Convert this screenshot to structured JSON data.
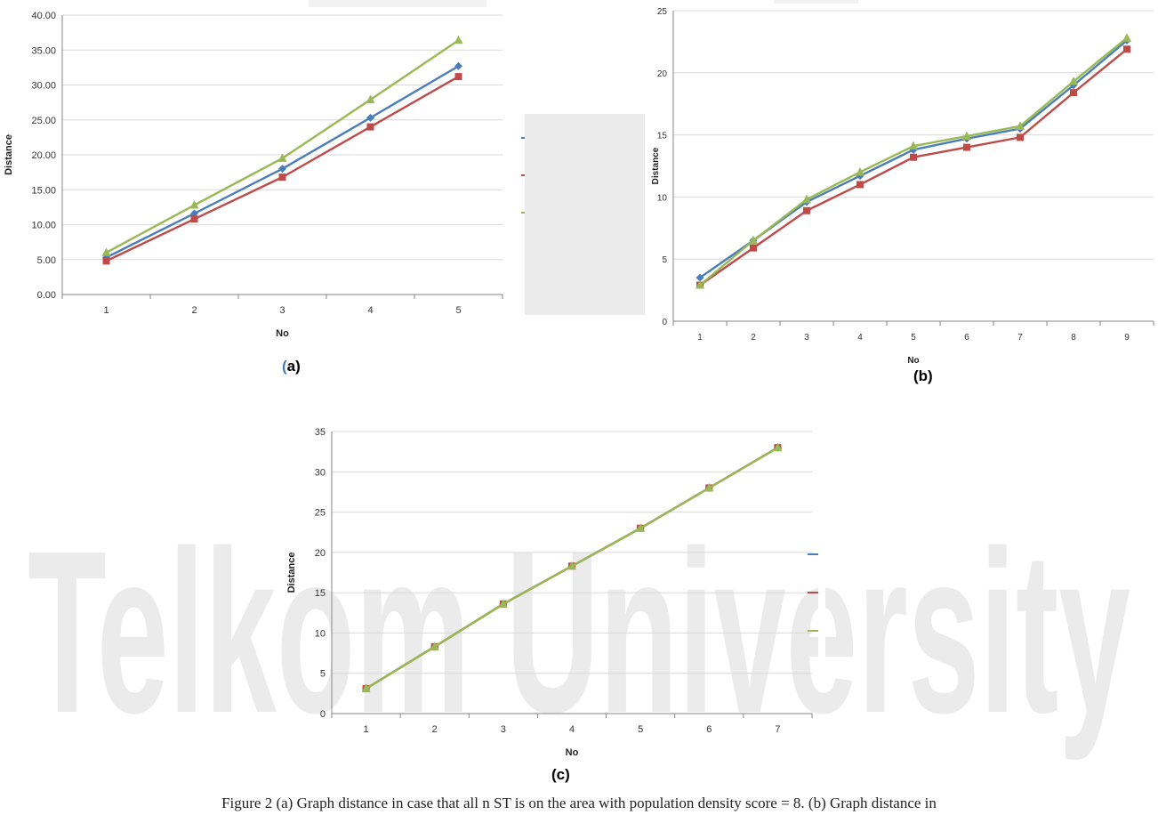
{
  "caption": "Figure 2 (a) Graph distance in case that all n ST is on the area with population density score = 8. (b) Graph distance in",
  "watermark": {
    "text": "Telkom University",
    "color": "#ebebeb"
  },
  "colors": {
    "series1": "#4a7ebb",
    "series2": "#be4b48",
    "series3": "#98b954",
    "grid": "#d9d9d9",
    "axis": "#868686"
  },
  "panels": [
    {
      "label_paren_open": "(",
      "label_rest": "a)",
      "chart_data": {
        "type": "line",
        "xlabel": "No",
        "ylabel": "Distance",
        "categories": [
          "1",
          "2",
          "3",
          "4",
          "5"
        ],
        "ylim": [
          0,
          40
        ],
        "ytick_step": 5,
        "ytick_decimals": 2,
        "series": [
          {
            "values": [
              5.3,
              11.6,
              18.0,
              25.3,
              32.7
            ],
            "marker": "diamond",
            "color": "#4a7ebb"
          },
          {
            "values": [
              4.8,
              10.8,
              16.8,
              24.0,
              31.2
            ],
            "marker": "square",
            "color": "#be4b48"
          },
          {
            "values": [
              6.0,
              12.8,
              19.5,
              27.9,
              36.4
            ],
            "marker": "triangle",
            "color": "#98b954"
          }
        ],
        "grid": true,
        "legend": "right (occluded)"
      }
    },
    {
      "label": "(b)",
      "chart_data": {
        "type": "line",
        "xlabel": "No",
        "ylabel": "Distance",
        "categories": [
          "1",
          "2",
          "3",
          "4",
          "5",
          "6",
          "7",
          "8",
          "9"
        ],
        "ylim": [
          0,
          25
        ],
        "ytick_step": 5,
        "ytick_decimals": 0,
        "series": [
          {
            "values": [
              3.5,
              6.5,
              9.6,
              11.7,
              13.8,
              14.7,
              15.5,
              19.0,
              22.6
            ],
            "marker": "diamond",
            "color": "#4a7ebb"
          },
          {
            "values": [
              2.9,
              5.9,
              8.9,
              11.0,
              13.2,
              14.0,
              14.8,
              18.4,
              21.9
            ],
            "marker": "square",
            "color": "#be4b48"
          },
          {
            "values": [
              2.9,
              6.5,
              9.8,
              12.0,
              14.1,
              14.9,
              15.7,
              19.3,
              22.8
            ],
            "marker": "triangle",
            "color": "#98b954"
          }
        ],
        "grid": true,
        "legend": "none visible"
      }
    },
    {
      "label": "(c)",
      "chart_data": {
        "type": "line",
        "xlabel": "No",
        "ylabel": "Distance",
        "categories": [
          "1",
          "2",
          "3",
          "4",
          "5",
          "6",
          "7"
        ],
        "ylim": [
          0,
          35
        ],
        "ytick_step": 5,
        "ytick_decimals": 0,
        "series": [
          {
            "values": [
              3.1,
              8.3,
              13.6,
              18.3,
              23.0,
              28.0,
              33.0
            ],
            "marker": "diamond",
            "color": "#4a7ebb"
          },
          {
            "values": [
              3.1,
              8.3,
              13.6,
              18.3,
              23.0,
              28.0,
              33.0
            ],
            "marker": "square",
            "color": "#be4b48"
          },
          {
            "values": [
              3.1,
              8.3,
              13.6,
              18.3,
              23.0,
              28.0,
              33.0
            ],
            "marker": "triangle",
            "color": "#98b954"
          }
        ],
        "grid": true,
        "legend": "right (occluded)"
      }
    }
  ]
}
